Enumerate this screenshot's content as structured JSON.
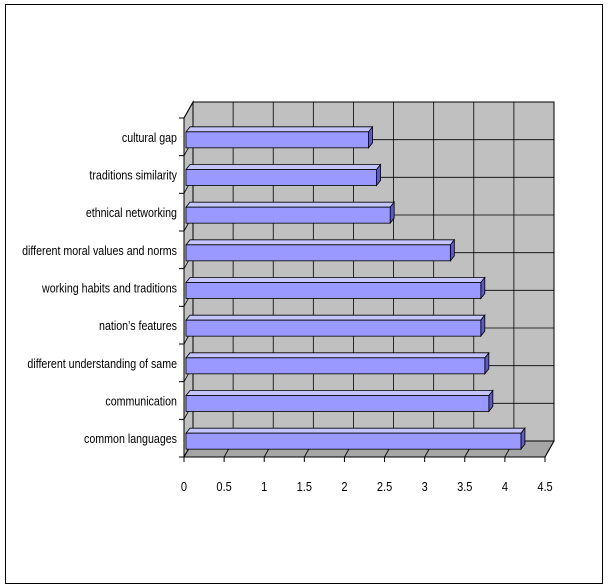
{
  "chart_data": {
    "type": "bar",
    "orientation": "horizontal",
    "style": "3d",
    "categories": [
      "cultural gap",
      "traditions similarity",
      "ethnical networking",
      "different moral values and norms",
      "working habits and traditions",
      "nation’s features",
      "different understanding of same",
      "communication",
      "common languages"
    ],
    "values": [
      2.3,
      2.4,
      2.57,
      3.32,
      3.7,
      3.7,
      3.75,
      3.8,
      4.2
    ],
    "xlim": [
      0,
      4.5
    ],
    "xticks": [
      "0",
      "0.5",
      "1",
      "1.5",
      "2",
      "2.5",
      "3",
      "3.5",
      "4",
      "4.5"
    ],
    "grid": true,
    "legend": "none",
    "title": "",
    "xlabel": "",
    "ylabel": ""
  },
  "colors": {
    "bar_front": "#9999ff",
    "bar_top": "#c4c4ff",
    "bar_side": "#5c5cc0",
    "back_wall": "#c0c0c0",
    "floor": "#a6a6a6",
    "grid": "#000000"
  }
}
